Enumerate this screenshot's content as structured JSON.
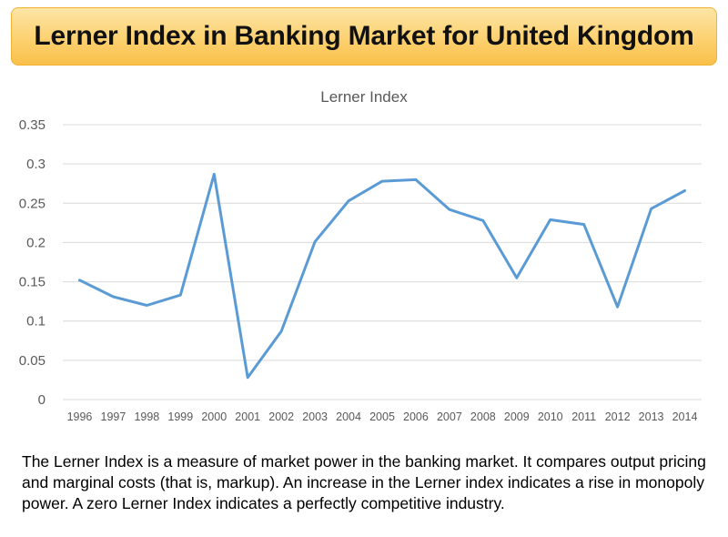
{
  "page": {
    "title": "Lerner Index in Banking Market for United Kingdom",
    "caption": "The Lerner Index is a measure of market power in the banking market. It compares output pricing and marginal costs (that is, markup). An increase in the Lerner index indicates a rise in monopoly power. A zero Lerner Index indicates a perfectly competitive industry."
  },
  "colors": {
    "banner_fill": "#fcd170",
    "banner_border": "#f2b236",
    "line": "#5b9bd5",
    "grid": "#d9d9d9",
    "tick_text": "#595959"
  },
  "chart_data": {
    "type": "line",
    "title": "Lerner Index",
    "xlabel": "",
    "ylabel": "",
    "categories": [
      "1996",
      "1997",
      "1998",
      "1999",
      "2000",
      "2001",
      "2002",
      "2003",
      "2004",
      "2005",
      "2006",
      "2007",
      "2008",
      "2009",
      "2010",
      "2011",
      "2012",
      "2013",
      "2014"
    ],
    "series": [
      {
        "values": [
          0.152,
          0.131,
          0.12,
          0.133,
          0.287,
          0.028,
          0.087,
          0.201,
          0.253,
          0.278,
          0.28,
          0.242,
          0.228,
          0.155,
          0.229,
          0.223,
          0.118,
          0.243,
          0.266
        ]
      }
    ],
    "ylim": [
      0,
      0.35
    ],
    "yticks": [
      "0",
      "0.05",
      "0.1",
      "0.15",
      "0.2",
      "0.25",
      "0.3",
      "0.35"
    ],
    "grid": true,
    "legend": "none"
  }
}
